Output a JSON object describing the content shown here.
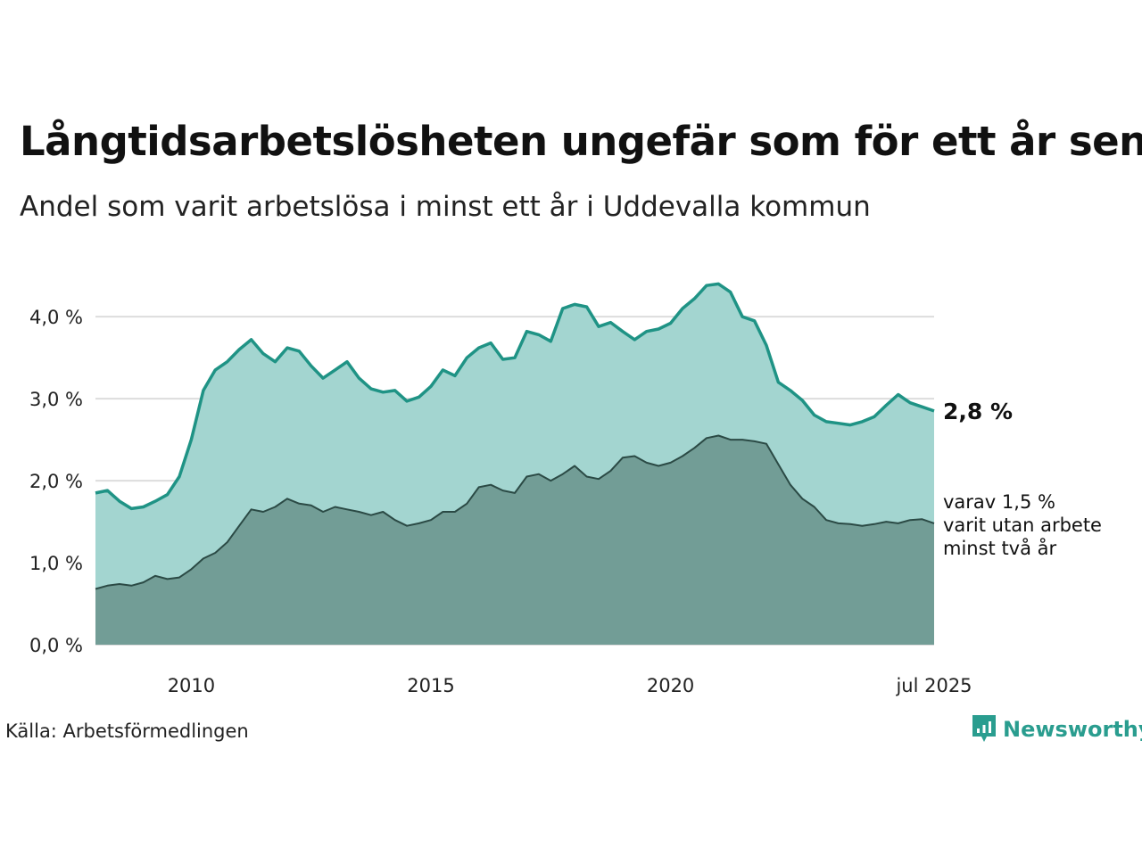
{
  "title": "Långtidsarbetslösheten ungefär som för ett år sen",
  "subtitle": "Andel som varit arbetslösa i minst ett år i Uddevalla kommun",
  "source": "Källa: Arbetsförmedlingen",
  "brand": "Newsworthy",
  "colors": {
    "outer_fill": "#a3d5d0",
    "outer_line": "#1f9385",
    "inner_fill": "#729d96",
    "inner_line": "#2b4a45",
    "grid": "#dddddd"
  },
  "chart_data": {
    "type": "area",
    "y_ticks": [
      "0,0 %",
      "1,0 %",
      "2,0 %",
      "3,0 %",
      "4,0 %"
    ],
    "ylim": [
      0,
      4.6
    ],
    "x_ticks": [
      "2010",
      "2015",
      "2020",
      "jul 2025"
    ],
    "x_tick_positions": [
      2010.0,
      2015.0,
      2020.0,
      2025.5
    ],
    "xlim": [
      2008.0,
      2025.5
    ],
    "end_label": "2,8 %",
    "secondary_label_lines": [
      "varav 1,5 %",
      "varit utan arbete",
      "minst två år"
    ],
    "series": [
      {
        "values": [
          [
            2008.0,
            1.85
          ],
          [
            2008.25,
            1.88
          ],
          [
            2008.5,
            1.75
          ],
          [
            2008.75,
            1.66
          ],
          [
            2009.0,
            1.68
          ],
          [
            2009.25,
            1.75
          ],
          [
            2009.5,
            1.83
          ],
          [
            2009.75,
            2.05
          ],
          [
            2010.0,
            2.5
          ],
          [
            2010.25,
            3.1
          ],
          [
            2010.5,
            3.35
          ],
          [
            2010.75,
            3.45
          ],
          [
            2011.0,
            3.6
          ],
          [
            2011.25,
            3.72
          ],
          [
            2011.5,
            3.55
          ],
          [
            2011.75,
            3.45
          ],
          [
            2012.0,
            3.62
          ],
          [
            2012.25,
            3.58
          ],
          [
            2012.5,
            3.4
          ],
          [
            2012.75,
            3.25
          ],
          [
            2013.0,
            3.35
          ],
          [
            2013.25,
            3.45
          ],
          [
            2013.5,
            3.25
          ],
          [
            2013.75,
            3.12
          ],
          [
            2014.0,
            3.08
          ],
          [
            2014.25,
            3.1
          ],
          [
            2014.5,
            2.97
          ],
          [
            2014.75,
            3.02
          ],
          [
            2015.0,
            3.15
          ],
          [
            2015.25,
            3.35
          ],
          [
            2015.5,
            3.28
          ],
          [
            2015.75,
            3.5
          ],
          [
            2016.0,
            3.62
          ],
          [
            2016.25,
            3.68
          ],
          [
            2016.5,
            3.48
          ],
          [
            2016.75,
            3.5
          ],
          [
            2017.0,
            3.82
          ],
          [
            2017.25,
            3.78
          ],
          [
            2017.5,
            3.7
          ],
          [
            2017.75,
            4.1
          ],
          [
            2018.0,
            4.15
          ],
          [
            2018.25,
            4.12
          ],
          [
            2018.5,
            3.88
          ],
          [
            2018.75,
            3.93
          ],
          [
            2019.0,
            3.82
          ],
          [
            2019.25,
            3.72
          ],
          [
            2019.5,
            3.82
          ],
          [
            2019.75,
            3.85
          ],
          [
            2020.0,
            3.92
          ],
          [
            2020.25,
            4.1
          ],
          [
            2020.5,
            4.22
          ],
          [
            2020.75,
            4.38
          ],
          [
            2021.0,
            4.4
          ],
          [
            2021.25,
            4.3
          ],
          [
            2021.5,
            4.0
          ],
          [
            2021.75,
            3.95
          ],
          [
            2022.0,
            3.65
          ],
          [
            2022.25,
            3.2
          ],
          [
            2022.5,
            3.1
          ],
          [
            2022.75,
            2.98
          ],
          [
            2023.0,
            2.8
          ],
          [
            2023.25,
            2.72
          ],
          [
            2023.5,
            2.7
          ],
          [
            2023.75,
            2.68
          ],
          [
            2024.0,
            2.72
          ],
          [
            2024.25,
            2.78
          ],
          [
            2024.5,
            2.92
          ],
          [
            2024.75,
            3.05
          ],
          [
            2025.0,
            2.95
          ],
          [
            2025.25,
            2.9
          ],
          [
            2025.5,
            2.85
          ]
        ]
      },
      {
        "values": [
          [
            2008.0,
            0.68
          ],
          [
            2008.25,
            0.72
          ],
          [
            2008.5,
            0.74
          ],
          [
            2008.75,
            0.72
          ],
          [
            2009.0,
            0.76
          ],
          [
            2009.25,
            0.84
          ],
          [
            2009.5,
            0.8
          ],
          [
            2009.75,
            0.82
          ],
          [
            2010.0,
            0.92
          ],
          [
            2010.25,
            1.05
          ],
          [
            2010.5,
            1.12
          ],
          [
            2010.75,
            1.25
          ],
          [
            2011.0,
            1.45
          ],
          [
            2011.25,
            1.65
          ],
          [
            2011.5,
            1.62
          ],
          [
            2011.75,
            1.68
          ],
          [
            2012.0,
            1.78
          ],
          [
            2012.25,
            1.72
          ],
          [
            2012.5,
            1.7
          ],
          [
            2012.75,
            1.62
          ],
          [
            2013.0,
            1.68
          ],
          [
            2013.25,
            1.65
          ],
          [
            2013.5,
            1.62
          ],
          [
            2013.75,
            1.58
          ],
          [
            2014.0,
            1.62
          ],
          [
            2014.25,
            1.52
          ],
          [
            2014.5,
            1.45
          ],
          [
            2014.75,
            1.48
          ],
          [
            2015.0,
            1.52
          ],
          [
            2015.25,
            1.62
          ],
          [
            2015.5,
            1.62
          ],
          [
            2015.75,
            1.72
          ],
          [
            2016.0,
            1.92
          ],
          [
            2016.25,
            1.95
          ],
          [
            2016.5,
            1.88
          ],
          [
            2016.75,
            1.85
          ],
          [
            2017.0,
            2.05
          ],
          [
            2017.25,
            2.08
          ],
          [
            2017.5,
            2.0
          ],
          [
            2017.75,
            2.08
          ],
          [
            2018.0,
            2.18
          ],
          [
            2018.25,
            2.05
          ],
          [
            2018.5,
            2.02
          ],
          [
            2018.75,
            2.12
          ],
          [
            2019.0,
            2.28
          ],
          [
            2019.25,
            2.3
          ],
          [
            2019.5,
            2.22
          ],
          [
            2019.75,
            2.18
          ],
          [
            2020.0,
            2.22
          ],
          [
            2020.25,
            2.3
          ],
          [
            2020.5,
            2.4
          ],
          [
            2020.75,
            2.52
          ],
          [
            2021.0,
            2.55
          ],
          [
            2021.25,
            2.5
          ],
          [
            2021.5,
            2.5
          ],
          [
            2021.75,
            2.48
          ],
          [
            2022.0,
            2.45
          ],
          [
            2022.25,
            2.2
          ],
          [
            2022.5,
            1.95
          ],
          [
            2022.75,
            1.78
          ],
          [
            2023.0,
            1.68
          ],
          [
            2023.25,
            1.52
          ],
          [
            2023.5,
            1.48
          ],
          [
            2023.75,
            1.47
          ],
          [
            2024.0,
            1.45
          ],
          [
            2024.25,
            1.47
          ],
          [
            2024.5,
            1.5
          ],
          [
            2024.75,
            1.48
          ],
          [
            2025.0,
            1.52
          ],
          [
            2025.25,
            1.53
          ],
          [
            2025.5,
            1.48
          ]
        ]
      }
    ]
  }
}
